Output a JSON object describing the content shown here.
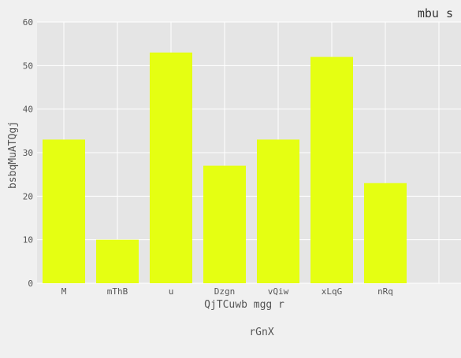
{
  "chart_data": {
    "type": "bar",
    "title": "mbu s",
    "xlabel": "QjTCuwb  mgg r",
    "ylabel": "bsbqMuATQgj",
    "categories": [
      "M",
      "mThB",
      "u",
      "Dzgn",
      "vQiw",
      "xLqG",
      "nRq"
    ],
    "values": [
      33,
      10,
      53,
      27,
      33,
      52,
      23
    ],
    "ylim": [
      0,
      60
    ],
    "yticks": [
      0,
      10,
      20,
      30,
      40,
      50,
      60
    ],
    "grid": true,
    "legend": {
      "placement": "bottom-center",
      "label": "rGnX"
    },
    "colors": {
      "bar": "#e5ff12",
      "plot_bg": "#e5e5e5",
      "grid": "#ffffff",
      "page_bg": "#f0f0f0"
    }
  }
}
